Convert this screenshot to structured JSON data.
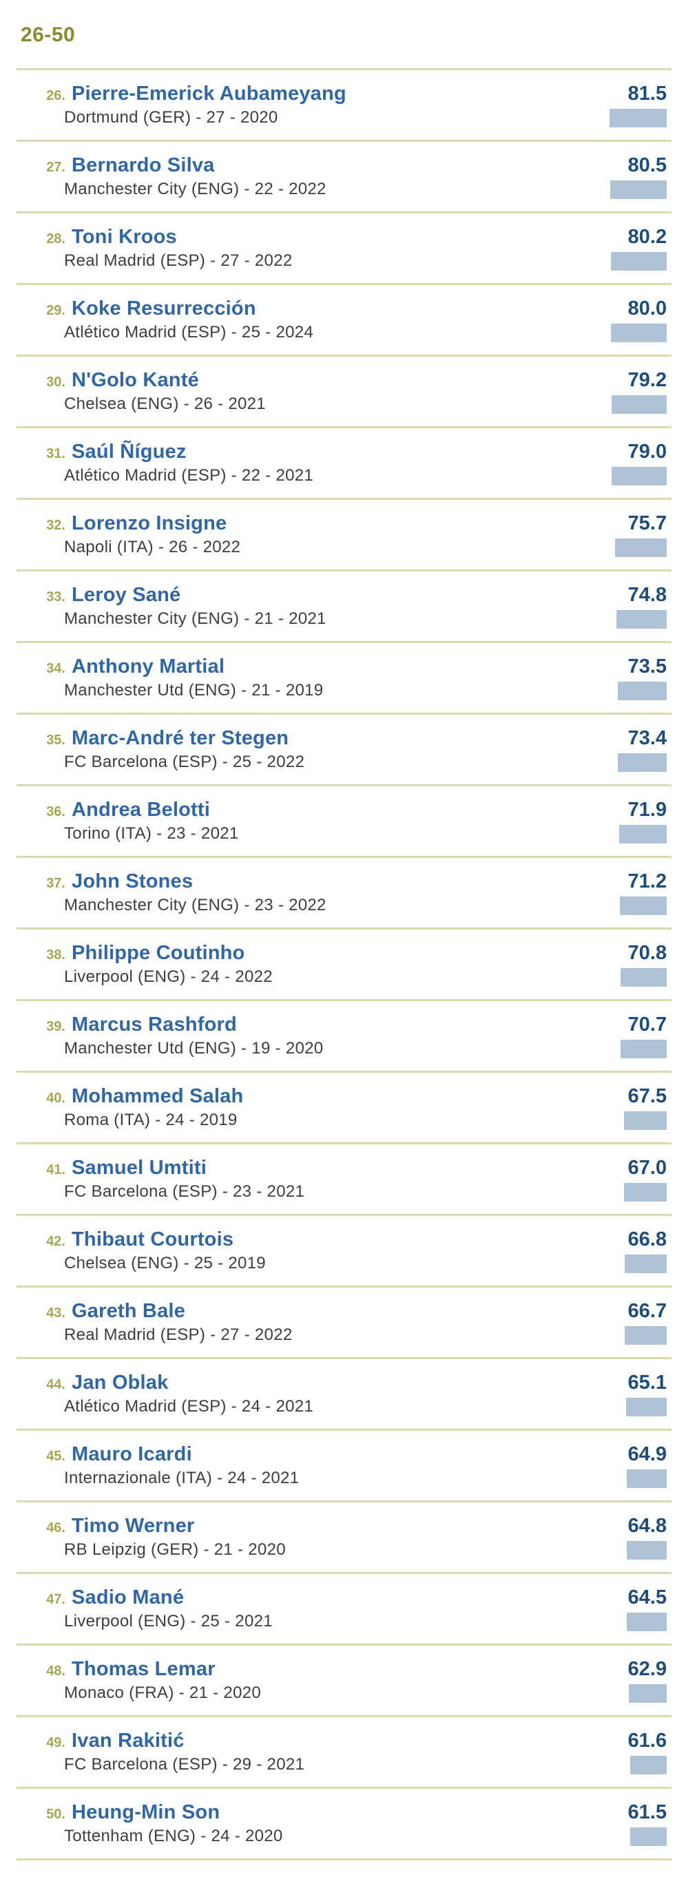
{
  "header": {
    "title": "26-50"
  },
  "colors": {
    "c_title": "#8a8b2d",
    "c_rank": "#a6a750",
    "c_divider": "#dcdbb0",
    "c_name": "#2f67a6",
    "c_rating": "#1d4d7d",
    "c_meta": "#3d3d3d",
    "c_bar": "#aec3d8"
  },
  "players": [
    {
      "rank": 26,
      "name": "Pierre-Emerick Aubameyang",
      "club": "Dortmund",
      "country": "GER",
      "age": 27,
      "year": 2020,
      "rating": "81.5"
    },
    {
      "rank": 27,
      "name": "Bernardo Silva",
      "club": "Manchester City",
      "country": "ENG",
      "age": 22,
      "year": 2022,
      "rating": "80.5"
    },
    {
      "rank": 28,
      "name": "Toni Kroos",
      "club": "Real Madrid",
      "country": "ESP",
      "age": 27,
      "year": 2022,
      "rating": "80.2"
    },
    {
      "rank": 29,
      "name": "Koke Resurrección",
      "club": "Atlético Madrid",
      "country": "ESP",
      "age": 25,
      "year": 2024,
      "rating": "80.0"
    },
    {
      "rank": 30,
      "name": "N'Golo Kanté",
      "club": "Chelsea",
      "country": "ENG",
      "age": 26,
      "year": 2021,
      "rating": "79.2"
    },
    {
      "rank": 31,
      "name": "Saúl Ñíguez",
      "club": "Atlético Madrid",
      "country": "ESP",
      "age": 22,
      "year": 2021,
      "rating": "79.0"
    },
    {
      "rank": 32,
      "name": "Lorenzo Insigne",
      "club": "Napoli",
      "country": "ITA",
      "age": 26,
      "year": 2022,
      "rating": "75.7"
    },
    {
      "rank": 33,
      "name": "Leroy Sané",
      "club": "Manchester City",
      "country": "ENG",
      "age": 21,
      "year": 2021,
      "rating": "74.8"
    },
    {
      "rank": 34,
      "name": "Anthony Martial",
      "club": "Manchester Utd",
      "country": "ENG",
      "age": 21,
      "year": 2019,
      "rating": "73.5"
    },
    {
      "rank": 35,
      "name": "Marc-André ter Stegen",
      "club": "FC Barcelona",
      "country": "ESP",
      "age": 25,
      "year": 2022,
      "rating": "73.4"
    },
    {
      "rank": 36,
      "name": "Andrea Belotti",
      "club": "Torino",
      "country": "ITA",
      "age": 23,
      "year": 2021,
      "rating": "71.9"
    },
    {
      "rank": 37,
      "name": "John Stones",
      "club": "Manchester City",
      "country": "ENG",
      "age": 23,
      "year": 2022,
      "rating": "71.2"
    },
    {
      "rank": 38,
      "name": "Philippe Coutinho",
      "club": "Liverpool",
      "country": "ENG",
      "age": 24,
      "year": 2022,
      "rating": "70.8"
    },
    {
      "rank": 39,
      "name": "Marcus Rashford",
      "club": "Manchester Utd",
      "country": "ENG",
      "age": 19,
      "year": 2020,
      "rating": "70.7"
    },
    {
      "rank": 40,
      "name": "Mohammed Salah",
      "club": "Roma",
      "country": "ITA",
      "age": 24,
      "year": 2019,
      "rating": "67.5"
    },
    {
      "rank": 41,
      "name": "Samuel Umtiti",
      "club": "FC Barcelona",
      "country": "ESP",
      "age": 23,
      "year": 2021,
      "rating": "67.0"
    },
    {
      "rank": 42,
      "name": "Thibaut Courtois",
      "club": "Chelsea",
      "country": "ENG",
      "age": 25,
      "year": 2019,
      "rating": "66.8"
    },
    {
      "rank": 43,
      "name": "Gareth Bale",
      "club": "Real Madrid",
      "country": "ESP",
      "age": 27,
      "year": 2022,
      "rating": "66.7"
    },
    {
      "rank": 44,
      "name": "Jan Oblak",
      "club": "Atlético Madrid",
      "country": "ESP",
      "age": 24,
      "year": 2021,
      "rating": "65.1"
    },
    {
      "rank": 45,
      "name": "Mauro Icardi",
      "club": "Internazionale",
      "country": "ITA",
      "age": 24,
      "year": 2021,
      "rating": "64.9"
    },
    {
      "rank": 46,
      "name": "Timo Werner",
      "club": "RB Leipzig",
      "country": "GER",
      "age": 21,
      "year": 2020,
      "rating": "64.8"
    },
    {
      "rank": 47,
      "name": "Sadio Mané",
      "club": "Liverpool",
      "country": "ENG",
      "age": 25,
      "year": 2021,
      "rating": "64.5"
    },
    {
      "rank": 48,
      "name": "Thomas Lemar",
      "club": "Monaco",
      "country": "FRA",
      "age": 21,
      "year": 2020,
      "rating": "62.9"
    },
    {
      "rank": 49,
      "name": "Ivan Rakitić",
      "club": "FC Barcelona",
      "country": "ESP",
      "age": 29,
      "year": 2021,
      "rating": "61.6"
    },
    {
      "rank": 50,
      "name": "Heung-Min Son",
      "club": "Tottenham",
      "country": "ENG",
      "age": 24,
      "year": 2020,
      "rating": "61.5"
    }
  ],
  "chart_data": {
    "type": "bar",
    "orientation": "horizontal",
    "title": "26-50",
    "categories": [
      "Pierre-Emerick Aubameyang",
      "Bernardo Silva",
      "Toni Kroos",
      "Koke Resurrección",
      "N'Golo Kanté",
      "Saúl Ñíguez",
      "Lorenzo Insigne",
      "Leroy Sané",
      "Anthony Martial",
      "Marc-André ter Stegen",
      "Andrea Belotti",
      "John Stones",
      "Philippe Coutinho",
      "Marcus Rashford",
      "Mohammed Salah",
      "Samuel Umtiti",
      "Thibaut Courtois",
      "Gareth Bale",
      "Jan Oblak",
      "Mauro Icardi",
      "Timo Werner",
      "Sadio Mané",
      "Thomas Lemar",
      "Ivan Rakitić",
      "Heung-Min Son"
    ],
    "values": [
      81.5,
      80.5,
      80.2,
      80.0,
      79.2,
      79.0,
      75.7,
      74.8,
      73.5,
      73.4,
      71.9,
      71.2,
      70.8,
      70.7,
      67.5,
      67.0,
      66.8,
      66.7,
      65.1,
      64.9,
      64.8,
      64.5,
      62.9,
      61.6,
      61.5
    ],
    "value_labels": [
      "81.5",
      "80.5",
      "80.2",
      "80.0",
      "79.2",
      "79.0",
      "75.7",
      "74.8",
      "73.5",
      "73.4",
      "71.9",
      "71.2",
      "70.8",
      "70.7",
      "67.5",
      "67.0",
      "66.8",
      "66.7",
      "65.1",
      "64.9",
      "64.8",
      "64.5",
      "62.9",
      "61.6",
      "61.5"
    ],
    "legend": false,
    "grid": false
  }
}
